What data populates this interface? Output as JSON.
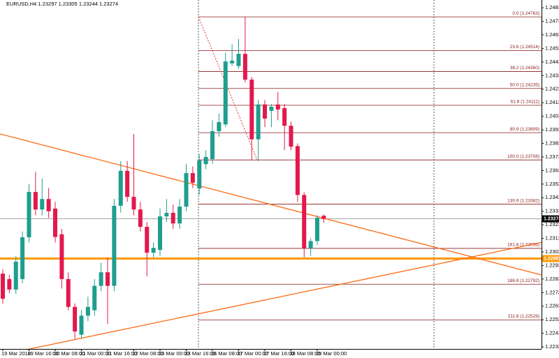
{
  "chart_data": {
    "type": "candlestick",
    "title": "EURUSD,H4 1.23297 1.23305 1.23244 1.23274",
    "categories": [
      "19 Mar 2018",
      null,
      null,
      null,
      "19 Mar 16:00",
      null,
      null,
      null,
      "20 Mar 08:00",
      null,
      null,
      null,
      "21 Mar 00:00",
      null,
      null,
      null,
      "21 Mar 16:00",
      null,
      null,
      null,
      "22 Mar 08:00",
      null,
      null,
      null,
      "23 Mar 00:00",
      null,
      null,
      null,
      "23 Mar 16:00",
      null,
      null,
      null,
      "26 Mar 08:00",
      null,
      null,
      null,
      "27 Mar 00:00",
      null,
      null,
      null,
      "27 Mar 16:00",
      null,
      null,
      null,
      "28 Mar 08:00",
      null,
      null,
      null,
      "29 Mar 00:00",
      null
    ],
    "open": [
      1.2287,
      1.2283,
      1.22753,
      1.2283,
      1.23138,
      1.23472,
      1.23343,
      1.2342,
      1.2335,
      1.2316,
      1.2283,
      1.22625,
      1.2242,
      1.2256,
      1.226,
      1.2278,
      1.2288,
      1.2278,
      1.2337,
      1.23628,
      1.23436,
      1.23343,
      1.23215,
      1.23024,
      1.23045,
      1.23292,
      1.23318,
      1.2324,
      1.23364,
      1.23611,
      1.23497,
      1.23677,
      1.23714,
      1.2392,
      1.2397,
      1.2442,
      1.244,
      1.2449,
      1.243,
      1.2386,
      1.24117,
      1.2407,
      1.24117,
      1.2409,
      1.2396,
      1.2381,
      1.2345,
      1.23056,
      1.2311,
      1.23297
    ],
    "high": [
      1.229,
      1.2286,
      1.23,
      1.2318,
      1.2353,
      1.2362,
      1.2357,
      1.235,
      1.234,
      1.232,
      1.2288,
      1.2265,
      1.226,
      1.227,
      1.2283,
      1.2295,
      1.2299,
      1.2342,
      1.237,
      1.237,
      1.239,
      1.234,
      1.2325,
      1.231,
      1.2335,
      1.2342,
      1.2338,
      1.2342,
      1.2368,
      1.2366,
      1.2375,
      1.2378,
      1.24,
      1.2405,
      1.245,
      1.2456,
      1.246,
      1.24763,
      1.2432,
      1.2415,
      1.2415,
      1.2412,
      1.2421,
      1.2412,
      1.2399,
      1.2383,
      1.2347,
      1.2313,
      1.233,
      1.23305
    ],
    "low": [
      1.2265,
      1.22726,
      1.2272,
      1.228,
      1.231,
      1.233,
      1.233,
      1.2328,
      1.231,
      1.2276,
      1.226,
      1.2239,
      1.2239,
      1.2252,
      1.2256,
      1.2274,
      1.225,
      1.2274,
      1.2332,
      1.234,
      1.233,
      1.2318,
      1.2285,
      1.2299,
      1.23,
      1.2325,
      1.232,
      1.232,
      1.2333,
      1.235,
      1.2345,
      1.2364,
      1.2368,
      1.2388,
      1.2395,
      1.244,
      1.2438,
      1.2428,
      1.23708,
      1.237,
      1.2395,
      1.2395,
      1.24,
      1.2378,
      1.2378,
      1.234,
      1.2299,
      1.23,
      1.2308,
      1.23244
    ],
    "close": [
      1.22685,
      1.22753,
      1.22958,
      1.23138,
      1.23472,
      1.23343,
      1.2342,
      1.2333,
      1.2314,
      1.2283,
      1.22625,
      1.22444,
      1.2256,
      1.22625,
      1.2278,
      1.2288,
      1.2278,
      1.2337,
      1.23628,
      1.23436,
      1.23343,
      1.23215,
      1.23024,
      1.2306,
      1.23292,
      1.23318,
      1.2324,
      1.23364,
      1.23611,
      1.2354,
      1.23704,
      1.2373,
      1.2392,
      1.23987,
      1.24434,
      1.2444,
      1.2449,
      1.243,
      1.2386,
      1.24117,
      1.24013,
      1.241,
      1.2408,
      1.2396,
      1.23806,
      1.2345,
      1.23056,
      1.2311,
      1.23282,
      1.23274
    ],
    "up_color": "#1f9e8f",
    "down_color": "#e3184c",
    "ylim": [
      1.22315,
      1.24887
    ],
    "yticks": [
      {
        "value": 1.2483,
        "label": "1.24830"
      },
      {
        "value": 1.2473,
        "label": "1.24730"
      },
      {
        "value": 1.2463,
        "label": "1.24630"
      },
      {
        "value": 1.2453,
        "label": "1.24530"
      },
      {
        "value": 1.2443,
        "label": "1.24430"
      },
      {
        "value": 1.2433,
        "label": "1.24330"
      },
      {
        "value": 1.2423,
        "label": "1.24230"
      },
      {
        "value": 1.2413,
        "label": "1.24130"
      },
      {
        "value": 1.2403,
        "label": "1.24030"
      },
      {
        "value": 1.2393,
        "label": "1.23930"
      },
      {
        "value": 1.2383,
        "label": "1.23830"
      },
      {
        "value": 1.2373,
        "label": "1.23730"
      },
      {
        "value": 1.2363,
        "label": "1.23630"
      },
      {
        "value": 1.2353,
        "label": "1.23530"
      },
      {
        "value": 1.2343,
        "label": "1.23430"
      },
      {
        "value": 1.2333,
        "label": "1.23330"
      },
      {
        "value": 1.2323,
        "label": "1.23230"
      },
      {
        "value": 1.2313,
        "label": "1.23130"
      },
      {
        "value": 1.2303,
        "label": "1.23030"
      },
      {
        "value": 1.2293,
        "label": "1.22930"
      },
      {
        "value": 1.2283,
        "label": "1.22830"
      },
      {
        "value": 1.2273,
        "label": "1.22730"
      },
      {
        "value": 1.2263,
        "label": "1.22630"
      },
      {
        "value": 1.2253,
        "label": "1.22530"
      },
      {
        "value": 1.2243,
        "label": "1.22430"
      },
      {
        "value": 1.2233,
        "label": "1.22330"
      }
    ],
    "fibo_color": "#8b1a1a",
    "fibo": [
      {
        "label": "0.0 (1.24763)",
        "value": 1.24763
      },
      {
        "label": "23.6 (1.24514)",
        "value": 1.24514
      },
      {
        "label": "38.2 (1.24360)",
        "value": 1.2436
      },
      {
        "label": "50.0 (1.24235)",
        "value": 1.24235
      },
      {
        "label": "61.8 (1.24111)",
        "value": 1.24111
      },
      {
        "label": "80.9 (1.23909)",
        "value": 1.23909
      },
      {
        "label": "100.0 (1.23708)",
        "value": 1.23708
      },
      {
        "label": "130.9 (1.23382)",
        "value": 1.23382
      },
      {
        "label": "161.8 (1.23056)",
        "value": 1.23056
      },
      {
        "label": "186.8 (1.22792)",
        "value": 1.22792
      },
      {
        "label": "211.8 (1.22529)",
        "value": 1.22529
      }
    ],
    "current_price": {
      "value": 1.23274,
      "label": "1.23274",
      "color": "#999999"
    },
    "level": {
      "value": 1.22981,
      "label": "1.22981",
      "color": "#ff9900"
    },
    "trendlines": [
      {
        "color": "#ff6a13",
        "start": 1.239,
        "end": 1.2286
      },
      {
        "color": "#ff6a13",
        "start": 1.2231,
        "end": 1.231
      }
    ]
  }
}
